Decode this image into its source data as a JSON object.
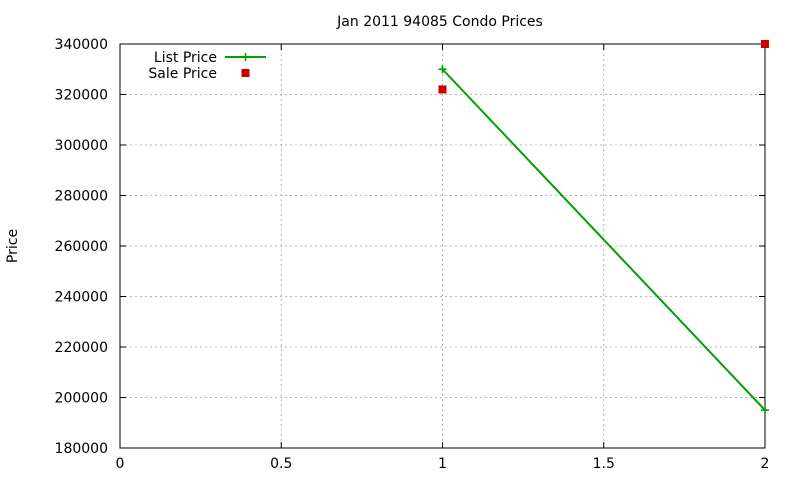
{
  "chart_data": {
    "type": "line",
    "title": "Jan 2011 94085 Condo Prices",
    "xlabel": "",
    "ylabel": "Price",
    "xlim": [
      0,
      2
    ],
    "ylim": [
      180000,
      340000
    ],
    "x_ticks": [
      0,
      0.5,
      1,
      1.5,
      2
    ],
    "x_tick_labels": [
      "0",
      "0.5",
      "1",
      "1.5",
      "2"
    ],
    "y_ticks": [
      180000,
      200000,
      220000,
      240000,
      260000,
      280000,
      300000,
      320000,
      340000
    ],
    "y_tick_labels": [
      "180000",
      "200000",
      "220000",
      "240000",
      "260000",
      "280000",
      "300000",
      "320000",
      "340000"
    ],
    "grid": true,
    "legend_position": "top-left",
    "series": [
      {
        "name": "List Price",
        "style": "linespoints",
        "marker": "plus",
        "color": "#00a000",
        "x": [
          1,
          2
        ],
        "y": [
          330000,
          195000
        ]
      },
      {
        "name": "Sale Price",
        "style": "points",
        "marker": "square",
        "color": "#cc0000",
        "x": [
          1,
          2
        ],
        "y": [
          322000,
          340000
        ]
      }
    ]
  }
}
